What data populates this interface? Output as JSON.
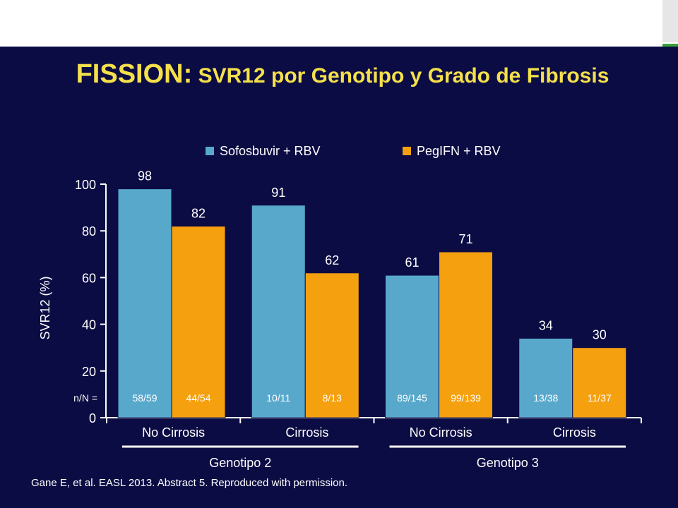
{
  "title": {
    "main": "FISSION:",
    "sub": " SVR12 por Genotipo y Grado de Fibrosis"
  },
  "source": "Gane E, et al. EASL 2013. Abstract 5. Reproduced with permission.",
  "colors": {
    "background": "#0c0c44",
    "title": "#f4e04a",
    "series_blue": "#58a8cc",
    "series_orange": "#f5a00e"
  },
  "chart_data": {
    "type": "bar",
    "ylabel": "SVR12 (%)",
    "ylim": [
      0,
      100
    ],
    "yticks": [
      0,
      20,
      40,
      60,
      80,
      100
    ],
    "grid": false,
    "legend_position": "top",
    "categories": [
      "No Cirrosis",
      "Cirrosis",
      "No Cirrosis",
      "Cirrosis"
    ],
    "groups": [
      {
        "label": "Genotipo 2",
        "categories": [
          0,
          1
        ]
      },
      {
        "label": "Genotipo 3",
        "categories": [
          2,
          3
        ]
      }
    ],
    "series": [
      {
        "name": "Sofosbuvir + RBV",
        "color": "#58a8cc",
        "values": [
          98,
          91,
          61,
          34
        ],
        "nN": [
          "58/59",
          "10/11",
          "89/145",
          "13/38"
        ]
      },
      {
        "name": "PegIFN + RBV",
        "color": "#f5a00e",
        "values": [
          82,
          62,
          71,
          30
        ],
        "nN": [
          "44/54",
          "8/13",
          "99/139",
          "11/37"
        ]
      }
    ],
    "nN_label": "n/N ="
  }
}
